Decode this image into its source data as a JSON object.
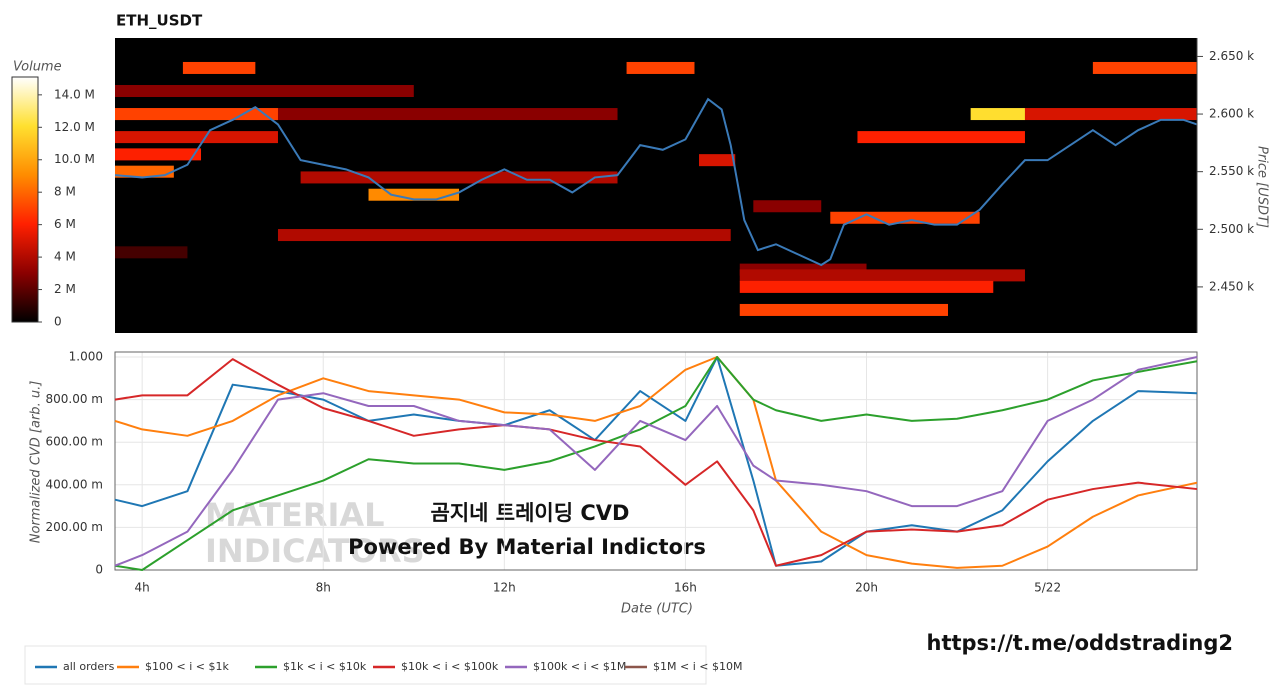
{
  "chart_data": [
    {
      "type": "heatmap",
      "title": "ETH_USDT",
      "y_label": "Price [USDT]",
      "colorbar_label": "Volume",
      "colorscale": [
        "#000000",
        "#8b0000",
        "#ff2000",
        "#ff8c00",
        "#ffe030",
        "#ffffff"
      ],
      "zlim": [
        0,
        15.1
      ],
      "zticks": [
        0,
        {
          "value": 2,
          "label": "2 M"
        },
        {
          "value": 4,
          "label": "4 M"
        },
        {
          "value": 6,
          "label": "6 M"
        },
        {
          "value": 8,
          "label": "8 M"
        },
        {
          "value": 10,
          "label": "10.0 M"
        },
        {
          "value": 12,
          "label": "12.0 M"
        },
        {
          "value": 14,
          "label": "14.0 M"
        }
      ],
      "xlim": [
        3.4,
        27.3
      ],
      "ylim": [
        2410,
        2666
      ],
      "yticks": [
        {
          "value": 2450,
          "label": "2.450 k"
        },
        {
          "value": 2500,
          "label": "2.500 k"
        },
        {
          "value": 2550,
          "label": "2.550 k"
        },
        {
          "value": 2600,
          "label": "2.600 k"
        },
        {
          "value": 2650,
          "label": "2.650 k"
        }
      ],
      "bands": {
        "price": [
          2620,
          2600,
          2640,
          2640,
          2640,
          2600,
          2600,
          2600,
          2580,
          2580,
          2565,
          2550,
          2545,
          2530,
          2510,
          2495,
          2480,
          2465,
          2460,
          2450,
          2430,
          2560,
          2520
        ],
        "x0": [
          3.4,
          3.4,
          4.9,
          14.7,
          25.0,
          3.4,
          22.3,
          23.5,
          3.4,
          19.8,
          3.4,
          3.4,
          7.5,
          9.0,
          19.2,
          7.0,
          3.4,
          17.2,
          17.2,
          17.2,
          17.2,
          16.3,
          17.5
        ],
        "x1": [
          10.0,
          14.5,
          6.5,
          16.2,
          27.3,
          7.0,
          23.5,
          27.3,
          7.0,
          23.5,
          5.3,
          4.7,
          14.5,
          11.0,
          22.5,
          17.0,
          5.0,
          20.0,
          23.5,
          22.8,
          21.8,
          17.1,
          19.0
        ],
        "volume": [
          3,
          3,
          7,
          7,
          7,
          7,
          12,
          5,
          5,
          6,
          6,
          8,
          4,
          9,
          7,
          4,
          1.5,
          3,
          4,
          6,
          7,
          5,
          3
        ]
      },
      "price": {
        "color": "#3a7ab8",
        "x": [
          3.4,
          4.0,
          4.5,
          5.0,
          5.5,
          6.0,
          6.5,
          7.0,
          7.5,
          8.0,
          8.5,
          9.0,
          9.5,
          10.0,
          10.5,
          11.0,
          11.5,
          12.0,
          12.5,
          13.0,
          13.5,
          14.0,
          14.5,
          15.0,
          15.5,
          16.0,
          16.5,
          16.8,
          17.0,
          17.3,
          17.6,
          18.0,
          18.5,
          19.0,
          19.2,
          19.5,
          20.0,
          20.5,
          21.0,
          21.5,
          22.0,
          22.5,
          23.0,
          23.5,
          24.0,
          24.5,
          25.0,
          25.5,
          26.0,
          26.5,
          27.0,
          27.3
        ],
        "values": [
          2547,
          2545,
          2547,
          2556,
          2586,
          2595,
          2606,
          2591,
          2560,
          2556,
          2552,
          2545,
          2530,
          2526,
          2526,
          2532,
          2543,
          2552,
          2543,
          2543,
          2532,
          2545,
          2547,
          2573,
          2569,
          2578,
          2613,
          2604,
          2573,
          2508,
          2482,
          2487,
          2478,
          2469,
          2474,
          2504,
          2513,
          2504,
          2508,
          2504,
          2504,
          2517,
          2539,
          2560,
          2560,
          2573,
          2586,
          2573,
          2586,
          2595,
          2595,
          2591
        ]
      }
    },
    {
      "type": "line",
      "x_label": "Date (UTC)",
      "y_label": "Normalized CVD [arb. u.]",
      "xlim": [
        3.4,
        27.3
      ],
      "ylim": [
        0,
        1.0
      ],
      "xticks": [
        {
          "value": 4,
          "label": "4h"
        },
        {
          "value": 8,
          "label": "8h"
        },
        {
          "value": 12,
          "label": "12h"
        },
        {
          "value": 16,
          "label": "16h"
        },
        {
          "value": 20,
          "label": "20h"
        },
        {
          "value": 24,
          "label": "5/22"
        }
      ],
      "yticks": [
        0,
        {
          "value": 0.2,
          "label": "200.00 m"
        },
        {
          "value": 0.4,
          "label": "400.00 m"
        },
        {
          "value": 0.6,
          "label": "600.00 m"
        },
        {
          "value": 0.8,
          "label": "800.00 m"
        },
        {
          "value": 1.0,
          "label": "1.000"
        }
      ],
      "grid": true,
      "x": [
        3.4,
        4,
        5,
        6,
        7,
        8,
        9,
        10,
        11,
        12,
        13,
        14,
        15,
        16,
        16.7,
        17.5,
        18,
        19,
        20,
        21,
        22,
        23,
        24,
        25,
        26,
        27.3
      ],
      "series": [
        {
          "name": "all orders",
          "color": "#1f77b4",
          "values": [
            0.33,
            0.3,
            0.37,
            0.87,
            0.84,
            0.8,
            0.7,
            0.73,
            0.7,
            0.68,
            0.75,
            0.61,
            0.84,
            0.7,
            1.0,
            0.42,
            0.02,
            0.04,
            0.18,
            0.21,
            0.18,
            0.28,
            0.51,
            0.7,
            0.84,
            0.83
          ]
        },
        {
          "name": "$100 < i < $1k",
          "color": "#ff7f0e",
          "values": [
            0.7,
            0.66,
            0.63,
            0.7,
            0.82,
            0.9,
            0.84,
            0.82,
            0.8,
            0.74,
            0.73,
            0.7,
            0.77,
            0.94,
            1.0,
            0.8,
            0.42,
            0.18,
            0.07,
            0.03,
            0.01,
            0.02,
            0.11,
            0.25,
            0.35,
            0.41
          ]
        },
        {
          "name": "$1k < i < $10k",
          "color": "#2ca02c",
          "values": [
            0.02,
            0.0,
            0.14,
            0.28,
            0.35,
            0.42,
            0.52,
            0.5,
            0.5,
            0.47,
            0.51,
            0.58,
            0.66,
            0.77,
            1.0,
            0.8,
            0.75,
            0.7,
            0.73,
            0.7,
            0.71,
            0.75,
            0.8,
            0.89,
            0.93,
            0.98
          ]
        },
        {
          "name": "$10k < i < $100k",
          "color": "#d62728",
          "values": [
            0.8,
            0.82,
            0.82,
            0.99,
            0.87,
            0.76,
            0.7,
            0.63,
            0.66,
            0.68,
            0.66,
            0.61,
            0.58,
            0.4,
            0.51,
            0.28,
            0.02,
            0.07,
            0.18,
            0.19,
            0.18,
            0.21,
            0.33,
            0.38,
            0.41,
            0.38
          ]
        },
        {
          "name": "$100k < i < $1M",
          "color": "#9467bd",
          "values": [
            0.02,
            0.07,
            0.18,
            0.47,
            0.8,
            0.83,
            0.77,
            0.77,
            0.7,
            0.68,
            0.66,
            0.47,
            0.7,
            0.61,
            0.77,
            0.49,
            0.42,
            0.4,
            0.37,
            0.3,
            0.3,
            0.37,
            0.7,
            0.8,
            0.94,
            1.0
          ]
        },
        {
          "name": "$1M < i < $10M",
          "color": "#8c564b"
        }
      ]
    }
  ],
  "annotations": {
    "watermark_title": "곰지네 트레이딩 CVD",
    "watermark_sub": "Powered By Material Indictors",
    "logo_1": "MATERIAL",
    "logo_2": "INDICATORS",
    "url": "https://t.me/oddstrading2"
  }
}
